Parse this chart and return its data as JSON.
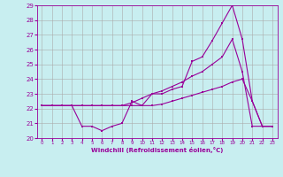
{
  "xlabel": "Windchill (Refroidissement éolien,°C)",
  "bg_color": "#c8eef0",
  "line_color": "#990099",
  "grid_color": "#aaaaaa",
  "xmin": 0,
  "xmax": 23,
  "ymin": 20,
  "ymax": 29,
  "line1_x": [
    0,
    1,
    2,
    3,
    4,
    5,
    6,
    7,
    8,
    9,
    10,
    11,
    12,
    13,
    14,
    15,
    16,
    17,
    18,
    19,
    20,
    21,
    22,
    23
  ],
  "line1_y": [
    22.2,
    22.2,
    22.2,
    22.2,
    22.2,
    22.2,
    22.2,
    22.2,
    22.2,
    22.2,
    22.2,
    22.2,
    22.3,
    22.5,
    22.7,
    22.9,
    23.1,
    23.3,
    23.5,
    23.8,
    24.0,
    22.5,
    20.8,
    20.8
  ],
  "line2_x": [
    0,
    1,
    2,
    3,
    4,
    5,
    6,
    7,
    8,
    9,
    10,
    11,
    12,
    13,
    14,
    15,
    16,
    17,
    18,
    19,
    20,
    21,
    22,
    23
  ],
  "line2_y": [
    22.2,
    22.2,
    22.2,
    22.2,
    20.8,
    20.8,
    20.5,
    20.8,
    21.0,
    22.5,
    22.2,
    23.0,
    23.0,
    23.3,
    23.5,
    25.2,
    25.5,
    26.6,
    27.8,
    29.0,
    26.7,
    22.5,
    20.8,
    20.8
  ],
  "line3_x": [
    0,
    1,
    2,
    3,
    4,
    5,
    6,
    7,
    8,
    9,
    10,
    11,
    12,
    13,
    14,
    15,
    16,
    17,
    18,
    19,
    20,
    21,
    22,
    23
  ],
  "line3_y": [
    22.2,
    22.2,
    22.2,
    22.2,
    22.2,
    22.2,
    22.2,
    22.2,
    22.2,
    22.4,
    22.7,
    23.0,
    23.2,
    23.5,
    23.8,
    24.2,
    24.5,
    25.0,
    25.5,
    26.7,
    24.5,
    20.8,
    20.8,
    20.8
  ]
}
